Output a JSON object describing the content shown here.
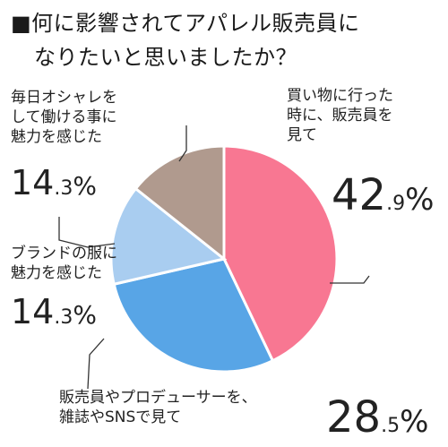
{
  "title_line1": "■何に影響されてアパレル販売員に",
  "title_line2": "なりたいと思いましたか？",
  "chart_data": {
    "type": "pie",
    "title": "■何に影響されてアパレル販売員になりたいと思いましたか？",
    "slices": [
      {
        "label": "買い物に行った時に、販売員を見て",
        "value": 42.9,
        "display_int": "42",
        "display_frac": ".9",
        "display_pct": "%",
        "color": "#f87792"
      },
      {
        "label": "販売員やプロデューサーを、雑誌やSNSで見て",
        "value": 28.5,
        "display_int": "28",
        "display_frac": ".5",
        "display_pct": "%",
        "color": "#58a5e6"
      },
      {
        "label": "ブランドの服に魅力を感じた",
        "value": 14.3,
        "display_int": "14",
        "display_frac": ".3",
        "display_pct": "%",
        "color": "#a9cdf0"
      },
      {
        "label": "毎日オシャレをして働ける事に魅力を感じた",
        "value": 14.3,
        "display_int": "14",
        "display_frac": ".3",
        "display_pct": "%",
        "color": "#b09a8e"
      }
    ]
  },
  "labels": {
    "s0": [
      "買い物に行った",
      "時に、販売員を",
      "見て"
    ],
    "s1": [
      "販売員やプロデューサーを、",
      "雑誌やSNSで見て"
    ],
    "s2": [
      "ブランドの服に",
      "魅力を感じた"
    ],
    "s3": [
      "毎日オシャレを",
      "して働ける事に",
      "魅力を感じた"
    ]
  }
}
